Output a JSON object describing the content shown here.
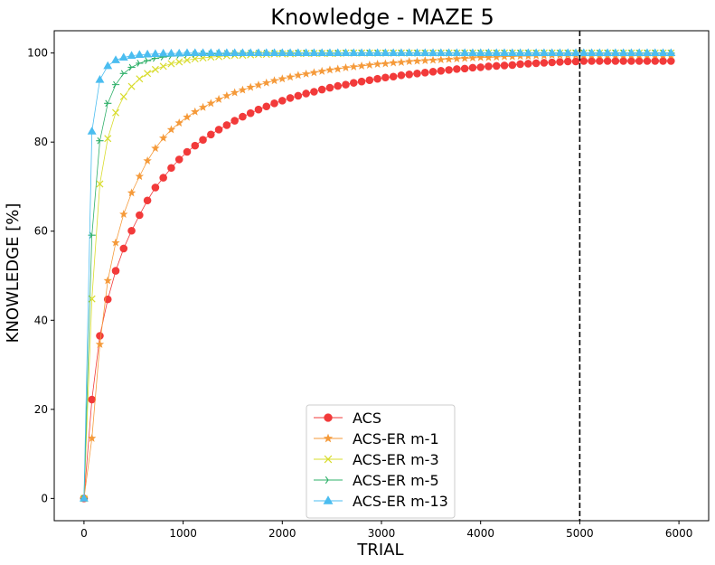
{
  "chart_data": {
    "type": "line",
    "title": "Knowledge - MAZE 5",
    "xlabel": "TRIAL",
    "ylabel": "KNOWLEDGE [%]",
    "xlim": [
      -300,
      6300
    ],
    "ylim": [
      -5,
      105
    ],
    "xticks": [
      0,
      1000,
      2000,
      3000,
      4000,
      5000,
      6000
    ],
    "yticks": [
      0,
      20,
      40,
      60,
      80,
      100
    ],
    "x_step": 80,
    "x_points": 75,
    "vline": {
      "x": 5000,
      "style": "dashed",
      "color": "#000000"
    },
    "legend_position": "lower-center",
    "series": [
      {
        "name": "ACS",
        "color": "#f23a3a",
        "marker": "circle",
        "values": [
          0,
          22.2,
          36.5,
          44.7,
          51.1,
          56.1,
          60.1,
          63.6,
          66.9,
          69.8,
          72.0,
          74.2,
          76.1,
          77.8,
          79.2,
          80.5,
          81.7,
          82.8,
          83.8,
          84.8,
          85.7,
          86.5,
          87.3,
          88.0,
          88.7,
          89.3,
          89.9,
          90.4,
          90.9,
          91.3,
          91.8,
          92.2,
          92.6,
          92.9,
          93.3,
          93.6,
          93.9,
          94.2,
          94.5,
          94.7,
          95.0,
          95.2,
          95.4,
          95.6,
          95.8,
          96.0,
          96.2,
          96.4,
          96.5,
          96.7,
          96.8,
          97.0,
          97.1,
          97.2,
          97.3,
          97.5,
          97.6,
          97.7,
          97.8,
          97.9,
          98.0,
          98.1,
          98.1,
          98.2,
          98.2,
          98.2,
          98.2,
          98.2,
          98.2,
          98.2,
          98.2,
          98.2,
          98.2,
          98.2,
          98.2
        ]
      },
      {
        "name": "ACS-ER m-1",
        "color": "#f59a3a",
        "marker": "star",
        "values": [
          0,
          13.5,
          34.6,
          48.9,
          57.4,
          63.8,
          68.6,
          72.3,
          75.8,
          78.6,
          80.9,
          82.8,
          84.3,
          85.6,
          86.8,
          87.8,
          88.7,
          89.6,
          90.4,
          91.1,
          91.7,
          92.3,
          92.8,
          93.3,
          93.8,
          94.2,
          94.6,
          95.0,
          95.3,
          95.6,
          95.9,
          96.2,
          96.4,
          96.7,
          96.9,
          97.1,
          97.3,
          97.5,
          97.6,
          97.8,
          97.9,
          98.1,
          98.2,
          98.3,
          98.4,
          98.5,
          98.6,
          98.7,
          98.8,
          98.9,
          99.0,
          99.0,
          99.1,
          99.2,
          99.2,
          99.3,
          99.3,
          99.4,
          99.4,
          99.5,
          99.5,
          99.5,
          99.5,
          99.5,
          99.5,
          99.5,
          99.5,
          99.5,
          99.5,
          99.5,
          99.5,
          99.5,
          99.5,
          99.5,
          99.5
        ]
      },
      {
        "name": "ACS-ER m-3",
        "color": "#d8dc2c",
        "marker": "x",
        "values": [
          0,
          44.8,
          70.6,
          80.8,
          86.6,
          90.2,
          92.5,
          94.2,
          95.4,
          96.3,
          97.0,
          97.6,
          98.0,
          98.4,
          98.7,
          98.9,
          99.1,
          99.2,
          99.4,
          99.5,
          99.5,
          99.6,
          99.7,
          99.7,
          99.8,
          99.8,
          99.8,
          99.9,
          99.9,
          99.9,
          99.9,
          99.9,
          99.9,
          100,
          100,
          100,
          100,
          100,
          100,
          100,
          100,
          100,
          100,
          100,
          100,
          100,
          100,
          100,
          100,
          100,
          100,
          100,
          100,
          100,
          100,
          100,
          100,
          100,
          100,
          100,
          100,
          100,
          100,
          100,
          100,
          100,
          100,
          100,
          100,
          100,
          100,
          100,
          100,
          100,
          100
        ]
      },
      {
        "name": "ACS-ER m-5",
        "color": "#2fb069",
        "marker": "tri_right",
        "values": [
          0,
          59.1,
          80.3,
          88.7,
          92.9,
          95.4,
          96.8,
          97.7,
          98.3,
          98.8,
          99.1,
          99.3,
          99.5,
          99.6,
          99.7,
          99.8,
          99.8,
          99.9,
          99.9,
          99.9,
          99.9,
          100,
          100,
          100,
          100,
          100,
          100,
          100,
          100,
          100,
          100,
          100,
          100,
          100,
          100,
          100,
          100,
          100,
          100,
          100,
          100,
          100,
          100,
          100,
          100,
          100,
          100,
          100,
          100,
          100,
          100,
          100,
          100,
          100,
          100,
          100,
          100,
          100,
          100,
          100,
          100,
          100,
          100,
          100,
          100,
          100,
          100,
          100,
          100,
          100,
          100,
          100,
          100,
          100,
          100
        ]
      },
      {
        "name": "ACS-ER m-13",
        "color": "#4bbdf0",
        "marker": "triangle",
        "values": [
          0,
          82.4,
          94.0,
          97.1,
          98.4,
          99.0,
          99.4,
          99.6,
          99.7,
          99.8,
          99.9,
          99.9,
          99.9,
          100,
          100,
          100,
          100,
          100,
          100,
          100,
          100,
          100,
          100,
          100,
          100,
          100,
          100,
          100,
          100,
          100,
          100,
          100,
          100,
          100,
          100,
          100,
          100,
          100,
          100,
          100,
          100,
          100,
          100,
          100,
          100,
          100,
          100,
          100,
          100,
          100,
          100,
          100,
          100,
          100,
          100,
          100,
          100,
          100,
          100,
          100,
          100,
          100,
          100,
          100,
          100,
          100,
          100,
          100,
          100,
          100,
          100,
          100,
          100,
          100,
          100
        ]
      }
    ]
  }
}
